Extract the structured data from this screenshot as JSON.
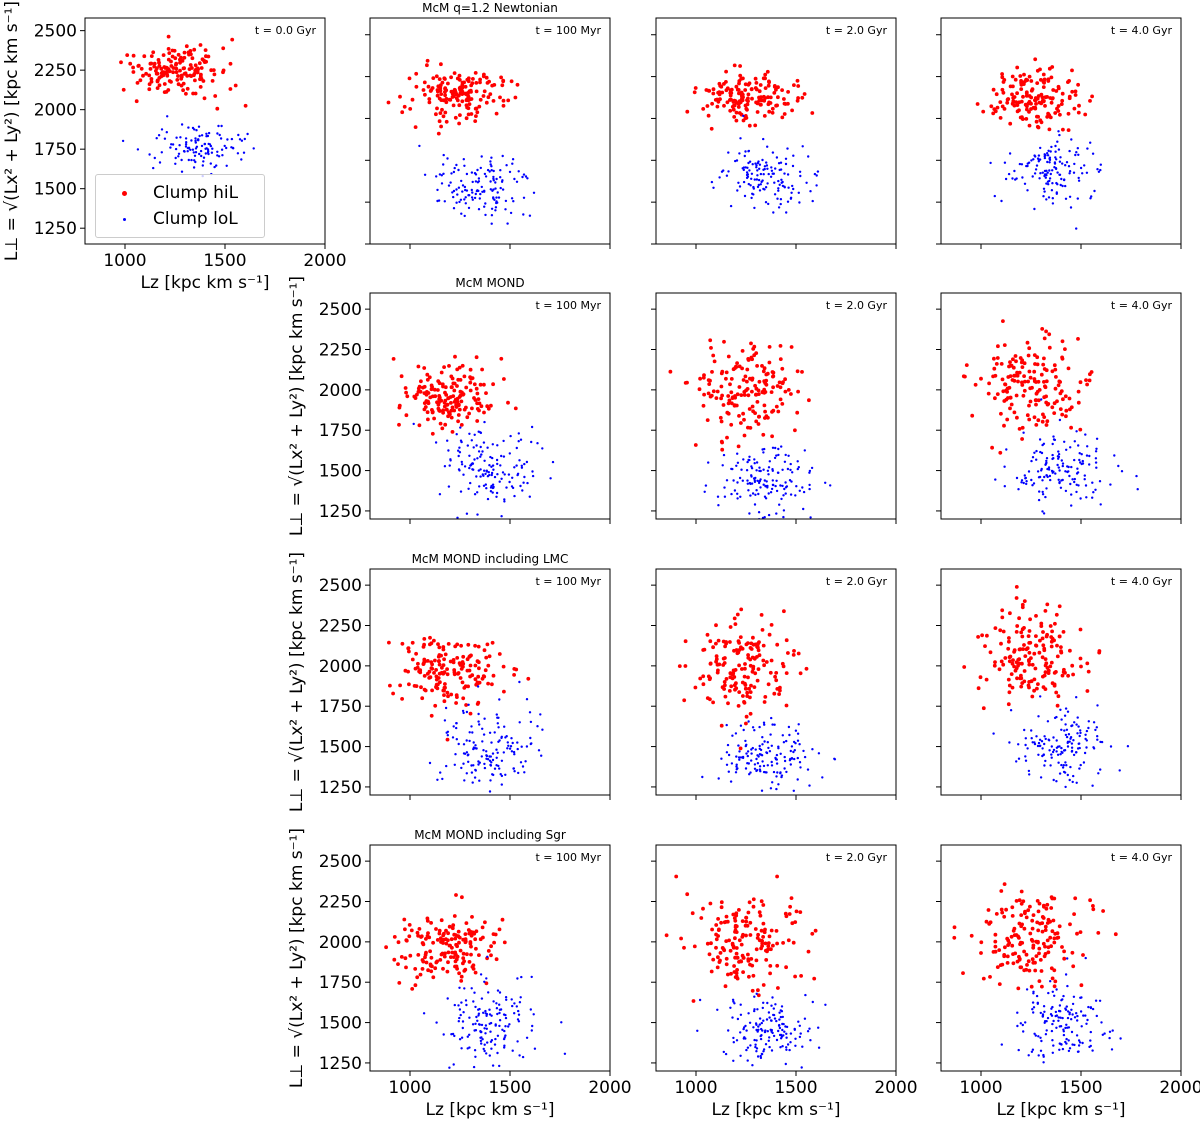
{
  "figure": {
    "ylabel_left": "L⊥ = √(Lx² + Ly²) [kpc km s⁻¹]",
    "xlabel": "Lz [kpc km s⁻¹]",
    "legend": [
      {
        "label": "Clump hiL",
        "color": "#ff0000"
      },
      {
        "label": "Clump loL",
        "color": "#0000ff"
      }
    ]
  },
  "chart_data": [
    {
      "type": "scatter",
      "row": 0,
      "col": 0,
      "title": "",
      "annotation": "t = 0.0 Gyr",
      "xlim": [
        800,
        2000
      ],
      "ylim": [
        1150,
        2580
      ],
      "xticks": [
        1000,
        1500,
        2000
      ],
      "yticks": [
        1250,
        1500,
        1750,
        2000,
        2250,
        2500
      ],
      "show_xticklabels": true,
      "show_yticklabels": true,
      "show_xlabel": true,
      "show_ylabel": true,
      "series": [
        {
          "name": "Clump hiL",
          "color": "#ff0000",
          "seed": 1,
          "x_center": 1250,
          "y_center": 2240,
          "x_spread": 190,
          "y_spread": 140,
          "count": 160
        },
        {
          "name": "Clump loL",
          "color": "#0000ff",
          "seed": 2,
          "x_center": 1380,
          "y_center": 1760,
          "x_spread": 180,
          "y_spread": 120,
          "count": 120
        }
      ]
    },
    {
      "type": "scatter",
      "row": 0,
      "col": 1,
      "title": "McM q=1.2 Newtonian",
      "annotation": "t = 100 Myr",
      "xlim": [
        800,
        2000
      ],
      "ylim": [
        1250,
        2600
      ],
      "xticks": [
        1000,
        1500,
        2000
      ],
      "yticks": [
        1250,
        1500,
        1750,
        2000,
        2250,
        2500
      ],
      "show_xticklabels": false,
      "show_yticklabels": false,
      "show_xlabel": false,
      "show_ylabel": false,
      "series": [
        {
          "name": "Clump hiL",
          "color": "#ff0000",
          "seed": 3,
          "x_center": 1250,
          "y_center": 2150,
          "x_spread": 200,
          "y_spread": 150,
          "count": 160
        },
        {
          "name": "Clump loL",
          "color": "#0000ff",
          "seed": 4,
          "x_center": 1350,
          "y_center": 1600,
          "x_spread": 200,
          "y_spread": 160,
          "count": 140
        }
      ]
    },
    {
      "type": "scatter",
      "row": 0,
      "col": 2,
      "title": "",
      "annotation": "t = 2.0 Gyr",
      "xlim": [
        800,
        2000
      ],
      "ylim": [
        1250,
        2600
      ],
      "xticks": [
        1000,
        1500,
        2000
      ],
      "yticks": [
        1250,
        1500,
        1750,
        2000,
        2250,
        2500
      ],
      "show_xticklabels": false,
      "show_yticklabels": false,
      "show_xlabel": false,
      "show_ylabel": false,
      "series": [
        {
          "name": "Clump hiL",
          "color": "#ff0000",
          "seed": 5,
          "x_center": 1250,
          "y_center": 2120,
          "x_spread": 200,
          "y_spread": 130,
          "count": 160
        },
        {
          "name": "Clump loL",
          "color": "#0000ff",
          "seed": 6,
          "x_center": 1350,
          "y_center": 1650,
          "x_spread": 200,
          "y_spread": 160,
          "count": 140
        }
      ]
    },
    {
      "type": "scatter",
      "row": 0,
      "col": 3,
      "title": "",
      "annotation": "t = 4.0 Gyr",
      "xlim": [
        800,
        2000
      ],
      "ylim": [
        1250,
        2600
      ],
      "xticks": [
        1000,
        1500,
        2000
      ],
      "yticks": [
        1250,
        1500,
        1750,
        2000,
        2250,
        2500
      ],
      "show_xticklabels": false,
      "show_yticklabels": false,
      "show_xlabel": false,
      "show_ylabel": false,
      "series": [
        {
          "name": "Clump hiL",
          "color": "#ff0000",
          "seed": 7,
          "x_center": 1280,
          "y_center": 2120,
          "x_spread": 200,
          "y_spread": 150,
          "count": 160
        },
        {
          "name": "Clump loL",
          "color": "#0000ff",
          "seed": 8,
          "x_center": 1360,
          "y_center": 1680,
          "x_spread": 190,
          "y_spread": 160,
          "count": 140
        }
      ]
    },
    {
      "type": "scatter",
      "row": 1,
      "col": 1,
      "title": "McM MOND",
      "annotation": "t = 100 Myr",
      "xlim": [
        800,
        2000
      ],
      "ylim": [
        1200,
        2600
      ],
      "xticks": [
        1000,
        1500,
        2000
      ],
      "yticks": [
        1250,
        1500,
        1750,
        2000,
        2250,
        2500
      ],
      "show_xticklabels": false,
      "show_yticklabels": true,
      "show_xlabel": false,
      "show_ylabel": true,
      "series": [
        {
          "name": "Clump hiL",
          "color": "#ff0000",
          "seed": 9,
          "x_center": 1200,
          "y_center": 1970,
          "x_spread": 210,
          "y_spread": 170,
          "count": 170
        },
        {
          "name": "Clump loL",
          "color": "#0000ff",
          "seed": 10,
          "x_center": 1400,
          "y_center": 1500,
          "x_spread": 200,
          "y_spread": 200,
          "count": 150
        }
      ]
    },
    {
      "type": "scatter",
      "row": 1,
      "col": 2,
      "title": "",
      "annotation": "t = 2.0 Gyr",
      "xlim": [
        800,
        2000
      ],
      "ylim": [
        1200,
        2600
      ],
      "xticks": [
        1000,
        1500,
        2000
      ],
      "yticks": [
        1250,
        1500,
        1750,
        2000,
        2250,
        2500
      ],
      "show_xticklabels": false,
      "show_yticklabels": false,
      "show_xlabel": false,
      "show_ylabel": false,
      "series": [
        {
          "name": "Clump hiL",
          "color": "#ff0000",
          "seed": 11,
          "x_center": 1250,
          "y_center": 2000,
          "x_spread": 220,
          "y_spread": 250,
          "count": 170
        },
        {
          "name": "Clump loL",
          "color": "#0000ff",
          "seed": 12,
          "x_center": 1350,
          "y_center": 1450,
          "x_spread": 200,
          "y_spread": 170,
          "count": 150
        }
      ]
    },
    {
      "type": "scatter",
      "row": 1,
      "col": 3,
      "title": "",
      "annotation": "t = 4.0 Gyr",
      "xlim": [
        800,
        2000
      ],
      "ylim": [
        1200,
        2600
      ],
      "xticks": [
        1000,
        1500,
        2000
      ],
      "yticks": [
        1250,
        1500,
        1750,
        2000,
        2250,
        2500
      ],
      "show_xticklabels": false,
      "show_yticklabels": false,
      "show_xlabel": false,
      "show_ylabel": false,
      "series": [
        {
          "name": "Clump hiL",
          "color": "#ff0000",
          "seed": 13,
          "x_center": 1250,
          "y_center": 2050,
          "x_spread": 220,
          "y_spread": 250,
          "count": 170
        },
        {
          "name": "Clump loL",
          "color": "#0000ff",
          "seed": 14,
          "x_center": 1400,
          "y_center": 1500,
          "x_spread": 200,
          "y_spread": 200,
          "count": 150
        }
      ]
    },
    {
      "type": "scatter",
      "row": 2,
      "col": 1,
      "title": "McM MOND including LMC",
      "annotation": "t = 100 Myr",
      "xlim": [
        800,
        2000
      ],
      "ylim": [
        1200,
        2600
      ],
      "xticks": [
        1000,
        1500,
        2000
      ],
      "yticks": [
        1250,
        1500,
        1750,
        2000,
        2250,
        2500
      ],
      "show_xticklabels": false,
      "show_yticklabels": true,
      "show_xlabel": false,
      "show_ylabel": true,
      "series": [
        {
          "name": "Clump hiL",
          "color": "#ff0000",
          "seed": 15,
          "x_center": 1200,
          "y_center": 1970,
          "x_spread": 210,
          "y_spread": 170,
          "count": 170
        },
        {
          "name": "Clump loL",
          "color": "#0000ff",
          "seed": 16,
          "x_center": 1400,
          "y_center": 1500,
          "x_spread": 200,
          "y_spread": 200,
          "count": 150
        }
      ]
    },
    {
      "type": "scatter",
      "row": 2,
      "col": 2,
      "title": "",
      "annotation": "t = 2.0 Gyr",
      "xlim": [
        800,
        2000
      ],
      "ylim": [
        1200,
        2600
      ],
      "xticks": [
        1000,
        1500,
        2000
      ],
      "yticks": [
        1250,
        1500,
        1750,
        2000,
        2250,
        2500
      ],
      "show_xticklabels": false,
      "show_yticklabels": false,
      "show_xlabel": false,
      "show_ylabel": false,
      "series": [
        {
          "name": "Clump hiL",
          "color": "#ff0000",
          "seed": 17,
          "x_center": 1250,
          "y_center": 2000,
          "x_spread": 220,
          "y_spread": 250,
          "count": 170
        },
        {
          "name": "Clump loL",
          "color": "#0000ff",
          "seed": 18,
          "x_center": 1350,
          "y_center": 1450,
          "x_spread": 200,
          "y_spread": 170,
          "count": 150
        }
      ]
    },
    {
      "type": "scatter",
      "row": 2,
      "col": 3,
      "title": "",
      "annotation": "t = 4.0 Gyr",
      "xlim": [
        800,
        2000
      ],
      "ylim": [
        1200,
        2600
      ],
      "xticks": [
        1000,
        1500,
        2000
      ],
      "yticks": [
        1250,
        1500,
        1750,
        2000,
        2250,
        2500
      ],
      "show_xticklabels": false,
      "show_yticklabels": false,
      "show_xlabel": false,
      "show_ylabel": false,
      "series": [
        {
          "name": "Clump hiL",
          "color": "#ff0000",
          "seed": 19,
          "x_center": 1250,
          "y_center": 2050,
          "x_spread": 220,
          "y_spread": 250,
          "count": 170
        },
        {
          "name": "Clump loL",
          "color": "#0000ff",
          "seed": 20,
          "x_center": 1400,
          "y_center": 1500,
          "x_spread": 200,
          "y_spread": 200,
          "count": 150
        }
      ]
    },
    {
      "type": "scatter",
      "row": 3,
      "col": 1,
      "title": "McM MOND including Sgr",
      "annotation": "t = 100 Myr",
      "xlim": [
        800,
        2000
      ],
      "ylim": [
        1200,
        2600
      ],
      "xticks": [
        1000,
        1500,
        2000
      ],
      "yticks": [
        1250,
        1500,
        1750,
        2000,
        2250,
        2500
      ],
      "show_xticklabels": true,
      "show_yticklabels": true,
      "show_xlabel": true,
      "show_ylabel": true,
      "series": [
        {
          "name": "Clump hiL",
          "color": "#ff0000",
          "seed": 21,
          "x_center": 1200,
          "y_center": 1970,
          "x_spread": 210,
          "y_spread": 170,
          "count": 170
        },
        {
          "name": "Clump loL",
          "color": "#0000ff",
          "seed": 22,
          "x_center": 1400,
          "y_center": 1500,
          "x_spread": 200,
          "y_spread": 200,
          "count": 150
        }
      ]
    },
    {
      "type": "scatter",
      "row": 3,
      "col": 2,
      "title": "",
      "annotation": "t = 2.0 Gyr",
      "xlim": [
        800,
        2000
      ],
      "ylim": [
        1200,
        2600
      ],
      "xticks": [
        1000,
        1500,
        2000
      ],
      "yticks": [
        1250,
        1500,
        1750,
        2000,
        2250,
        2500
      ],
      "show_xticklabels": true,
      "show_yticklabels": false,
      "show_xlabel": true,
      "show_ylabel": false,
      "series": [
        {
          "name": "Clump hiL",
          "color": "#ff0000",
          "seed": 23,
          "x_center": 1250,
          "y_center": 2000,
          "x_spread": 220,
          "y_spread": 250,
          "count": 170
        },
        {
          "name": "Clump loL",
          "color": "#0000ff",
          "seed": 24,
          "x_center": 1350,
          "y_center": 1450,
          "x_spread": 200,
          "y_spread": 170,
          "count": 150
        }
      ]
    },
    {
      "type": "scatter",
      "row": 3,
      "col": 3,
      "title": "",
      "annotation": "t = 4.0 Gyr",
      "xlim": [
        800,
        2000
      ],
      "ylim": [
        1200,
        2600
      ],
      "xticks": [
        1000,
        1500,
        2000
      ],
      "yticks": [
        1250,
        1500,
        1750,
        2000,
        2250,
        2500
      ],
      "show_xticklabels": true,
      "show_yticklabels": false,
      "show_xlabel": true,
      "show_ylabel": false,
      "series": [
        {
          "name": "Clump hiL",
          "color": "#ff0000",
          "seed": 25,
          "x_center": 1250,
          "y_center": 2050,
          "x_spread": 220,
          "y_spread": 250,
          "count": 170
        },
        {
          "name": "Clump loL",
          "color": "#0000ff",
          "seed": 26,
          "x_center": 1400,
          "y_center": 1500,
          "x_spread": 200,
          "y_spread": 200,
          "count": 150
        }
      ]
    }
  ]
}
